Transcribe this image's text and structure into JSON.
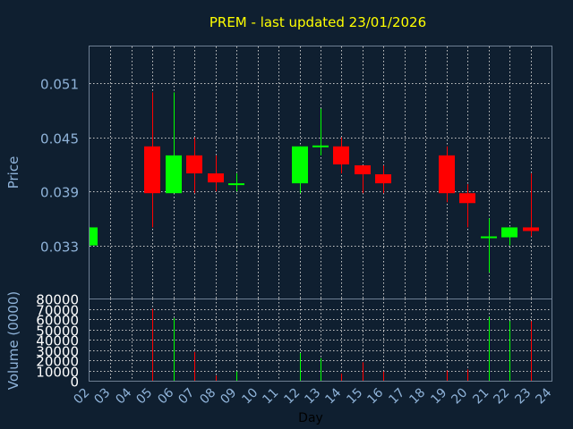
{
  "chart_data": {
    "type": "candlestick",
    "title": "PREM - last updated 23/01/2026",
    "price_axis": {
      "label": "Price",
      "ticks": [
        "0.051",
        "0.045",
        "0.039",
        "0.033"
      ],
      "tick_values": [
        0.051,
        0.045,
        0.039,
        0.033
      ],
      "range": [
        0.0271,
        0.0551
      ]
    },
    "volume_axis": {
      "label": "Volume (0000)",
      "ticks": [
        "80000",
        "70000",
        "60000",
        "50000",
        "40000",
        "30000",
        "20000",
        "10000",
        "0"
      ],
      "tick_values": [
        80000,
        70000,
        60000,
        50000,
        40000,
        30000,
        20000,
        10000,
        0
      ],
      "range": [
        0,
        80000
      ]
    },
    "x_axis": {
      "label": "Day",
      "ticks": [
        "02",
        "03",
        "04",
        "05",
        "06",
        "07",
        "08",
        "09",
        "10",
        "11",
        "12",
        "13",
        "14",
        "15",
        "16",
        "17",
        "18",
        "19",
        "20",
        "21",
        "22",
        "23",
        "24"
      ],
      "range": [
        2,
        24
      ]
    },
    "up_color": "#00ff00",
    "down_color": "#ff0000",
    "candles": [
      {
        "day": 2,
        "open": 0.033,
        "close": 0.035,
        "high": 0.035,
        "low": 0.033,
        "volume": 0
      },
      {
        "day": 5,
        "open": 0.044,
        "close": 0.0388,
        "high": 0.05,
        "low": 0.035,
        "volume": 70000
      },
      {
        "day": 6,
        "open": 0.0388,
        "close": 0.043,
        "high": 0.05,
        "low": 0.0388,
        "volume": 61000
      },
      {
        "day": 7,
        "open": 0.043,
        "close": 0.041,
        "high": 0.045,
        "low": 0.0388,
        "volume": 28000
      },
      {
        "day": 8,
        "open": 0.041,
        "close": 0.04,
        "high": 0.043,
        "low": 0.039,
        "volume": 5000
      },
      {
        "day": 9,
        "open": 0.0397,
        "close": 0.0399,
        "high": 0.041,
        "low": 0.039,
        "volume": 9000
      },
      {
        "day": 12,
        "open": 0.0399,
        "close": 0.044,
        "high": 0.044,
        "low": 0.0388,
        "volume": 27000
      },
      {
        "day": 13,
        "open": 0.0439,
        "close": 0.0441,
        "high": 0.0482,
        "low": 0.043,
        "volume": 22000
      },
      {
        "day": 14,
        "open": 0.044,
        "close": 0.042,
        "high": 0.045,
        "low": 0.041,
        "volume": 7000
      },
      {
        "day": 15,
        "open": 0.0419,
        "close": 0.0409,
        "high": 0.0419,
        "low": 0.0388,
        "volume": 18000
      },
      {
        "day": 16,
        "open": 0.0409,
        "close": 0.0399,
        "high": 0.0419,
        "low": 0.0388,
        "volume": 9000
      },
      {
        "day": 19,
        "open": 0.043,
        "close": 0.0388,
        "high": 0.044,
        "low": 0.0378,
        "volume": 10000
      },
      {
        "day": 20,
        "open": 0.0388,
        "close": 0.0377,
        "high": 0.0398,
        "low": 0.035,
        "volume": 11000
      },
      {
        "day": 21,
        "open": 0.0338,
        "close": 0.034,
        "high": 0.036,
        "low": 0.03,
        "volume": 62000
      },
      {
        "day": 22,
        "open": 0.0339,
        "close": 0.035,
        "high": 0.035,
        "low": 0.033,
        "volume": 58000
      },
      {
        "day": 23,
        "open": 0.035,
        "close": 0.0346,
        "high": 0.041,
        "low": 0.034,
        "volume": 58000
      }
    ]
  }
}
